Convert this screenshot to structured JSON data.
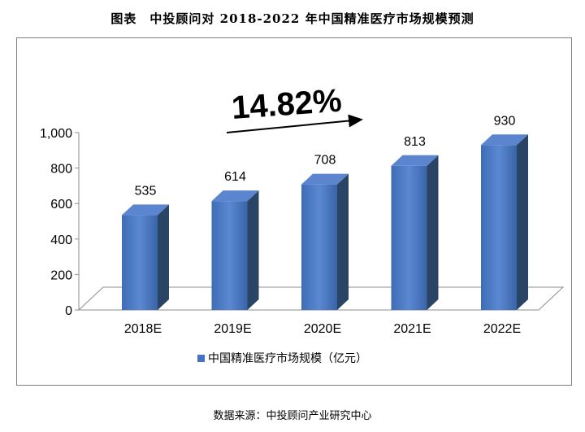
{
  "title": "图表　中投顾问对 2018-2022 年中国精准医疗市场规模预测",
  "source": "数据来源：中投顾问产业研究中心",
  "chart_data": {
    "type": "bar",
    "categories": [
      "2018E",
      "2019E",
      "2020E",
      "2021E",
      "2022E"
    ],
    "series": [
      {
        "name": "中国精准医疗市场规模（亿元）",
        "values": [
          535,
          614,
          708,
          813,
          930
        ]
      }
    ],
    "data_labels": [
      "535",
      "614",
      "708",
      "813",
      "930"
    ],
    "yticks": [
      "0",
      "200",
      "400",
      "600",
      "800",
      "1,000"
    ],
    "ylim": [
      0,
      1000
    ],
    "growth_annotation": "14.82%",
    "legend": "bottom",
    "grid": false,
    "bar_color": "#4472C4",
    "bar_side_color": "#2A4466",
    "bar_top_color": "#5B86CF"
  }
}
